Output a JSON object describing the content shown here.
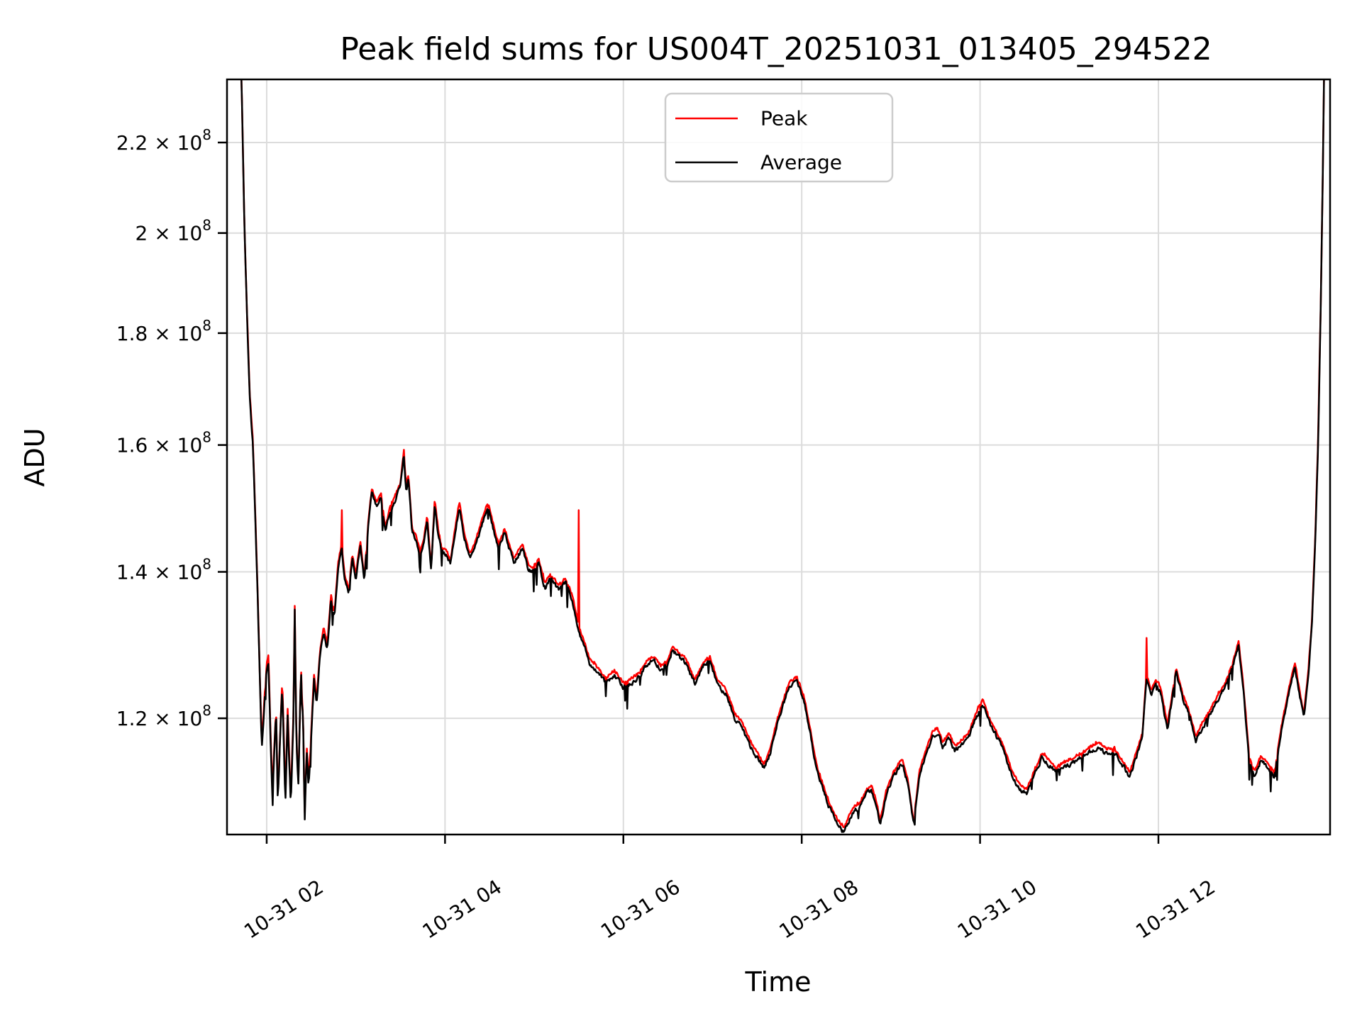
{
  "figure": {
    "title": "Peak field sums for US004T_20251031_013405_294522",
    "xlabel": "Time",
    "ylabel": "ADU",
    "background": "#ffffff"
  },
  "legend": {
    "items": [
      {
        "label": "Peak",
        "color": "#ff0000"
      },
      {
        "label": "Average",
        "color": "#000000"
      }
    ]
  },
  "chart_data": {
    "type": "line",
    "title": "Peak field sums for US004T_20251031_013405_294522",
    "xlabel": "Time",
    "ylabel": "ADU",
    "yscale": "log",
    "grid": true,
    "legend_position": "upper center",
    "x_unit": "hours of day on 2025-10-31",
    "xlim": [
      1.555,
      13.925
    ],
    "value_scale": 100000000.0,
    "ylim_scaled": [
      1.0618,
      2.3511
    ],
    "x_ticks": [
      {
        "t": 2,
        "label": "10-31 02"
      },
      {
        "t": 4,
        "label": "10-31 04"
      },
      {
        "t": 6,
        "label": "10-31 06"
      },
      {
        "t": 8,
        "label": "10-31 08"
      },
      {
        "t": 10,
        "label": "10-31 10"
      },
      {
        "t": 12,
        "label": "10-31 12"
      }
    ],
    "y_ticks": [
      {
        "v": 1.2,
        "mantissa": "1.2",
        "exponent": "8"
      },
      {
        "v": 1.4,
        "mantissa": "1.4",
        "exponent": "8"
      },
      {
        "v": 1.6,
        "mantissa": "1.6",
        "exponent": "8"
      },
      {
        "v": 1.8,
        "mantissa": "1.8",
        "exponent": "8"
      },
      {
        "v": 2.0,
        "mantissa": "2",
        "exponent": "8"
      },
      {
        "v": 2.2,
        "mantissa": "2.2",
        "exponent": "8"
      }
    ],
    "series": [
      {
        "name": "Peak",
        "color": "#ff0000",
        "relation": "slightly above Average; distinct narrow spikes listed below",
        "spikes": [
          [
            2.84,
            1.494
          ],
          [
            3.535,
            1.592
          ],
          [
            5.5,
            1.494
          ],
          [
            11.865,
            1.306
          ]
        ]
      },
      {
        "name": "Average",
        "color": "#000000",
        "anchors": [
          [
            1.555,
            3.6
          ],
          [
            1.62,
            3.0
          ],
          [
            1.68,
            2.55
          ],
          [
            1.718,
            2.35
          ],
          [
            1.75,
            2.02
          ],
          [
            1.78,
            1.83
          ],
          [
            1.81,
            1.68
          ],
          [
            1.845,
            1.6
          ],
          [
            1.875,
            1.47
          ],
          [
            1.9,
            1.36
          ],
          [
            1.925,
            1.24
          ],
          [
            1.945,
            1.166
          ],
          [
            1.97,
            1.21
          ],
          [
            2.0,
            1.265
          ],
          [
            2.02,
            1.278
          ],
          [
            2.045,
            1.17
          ],
          [
            2.065,
            1.105
          ],
          [
            2.085,
            1.16
          ],
          [
            2.105,
            1.205
          ],
          [
            2.125,
            1.098
          ],
          [
            2.15,
            1.17
          ],
          [
            2.175,
            1.245
          ],
          [
            2.21,
            1.1
          ],
          [
            2.235,
            1.205
          ],
          [
            2.27,
            1.096
          ],
          [
            2.3,
            1.2
          ],
          [
            2.315,
            1.346
          ],
          [
            2.335,
            1.16
          ],
          [
            2.355,
            1.12
          ],
          [
            2.385,
            1.26
          ],
          [
            2.41,
            1.185
          ],
          [
            2.425,
            1.078
          ],
          [
            2.45,
            1.16
          ],
          [
            2.47,
            1.115
          ],
          [
            2.5,
            1.18
          ],
          [
            2.53,
            1.25
          ],
          [
            2.56,
            1.22
          ],
          [
            2.6,
            1.285
          ],
          [
            2.64,
            1.315
          ],
          [
            2.68,
            1.29
          ],
          [
            2.72,
            1.36
          ],
          [
            2.76,
            1.335
          ],
          [
            2.8,
            1.405
          ],
          [
            2.84,
            1.435
          ],
          [
            2.875,
            1.39
          ],
          [
            2.92,
            1.368
          ],
          [
            2.96,
            1.42
          ],
          [
            3.0,
            1.39
          ],
          [
            3.05,
            1.44
          ],
          [
            3.095,
            1.385
          ],
          [
            3.14,
            1.47
          ],
          [
            3.18,
            1.52
          ],
          [
            3.23,
            1.5
          ],
          [
            3.28,
            1.515
          ],
          [
            3.33,
            1.46
          ],
          [
            3.38,
            1.49
          ],
          [
            3.44,
            1.51
          ],
          [
            3.5,
            1.53
          ],
          [
            3.535,
            1.58
          ],
          [
            3.565,
            1.525
          ],
          [
            3.59,
            1.545
          ],
          [
            3.63,
            1.458
          ],
          [
            3.67,
            1.45
          ],
          [
            3.72,
            1.425
          ],
          [
            3.76,
            1.44
          ],
          [
            3.8,
            1.478
          ],
          [
            3.845,
            1.4
          ],
          [
            3.885,
            1.505
          ],
          [
            3.92,
            1.46
          ],
          [
            3.96,
            1.43
          ],
          [
            4.02,
            1.425
          ],
          [
            4.06,
            1.41
          ],
          [
            4.11,
            1.455
          ],
          [
            4.16,
            1.5
          ],
          [
            4.22,
            1.448
          ],
          [
            4.28,
            1.42
          ],
          [
            4.33,
            1.435
          ],
          [
            4.41,
            1.47
          ],
          [
            4.48,
            1.5
          ],
          [
            4.55,
            1.46
          ],
          [
            4.6,
            1.435
          ],
          [
            4.67,
            1.458
          ],
          [
            4.77,
            1.413
          ],
          [
            4.87,
            1.435
          ],
          [
            4.93,
            1.405
          ],
          [
            4.98,
            1.4
          ],
          [
            5.05,
            1.413
          ],
          [
            5.12,
            1.377
          ],
          [
            5.18,
            1.39
          ],
          [
            5.27,
            1.374
          ],
          [
            5.35,
            1.384
          ],
          [
            5.43,
            1.358
          ],
          [
            5.5,
            1.315
          ],
          [
            5.56,
            1.295
          ],
          [
            5.62,
            1.272
          ],
          [
            5.7,
            1.262
          ],
          [
            5.8,
            1.245
          ],
          [
            5.9,
            1.256
          ],
          [
            6.0,
            1.24
          ],
          [
            6.08,
            1.245
          ],
          [
            6.17,
            1.252
          ],
          [
            6.27,
            1.27
          ],
          [
            6.35,
            1.275
          ],
          [
            6.42,
            1.262
          ],
          [
            6.5,
            1.27
          ],
          [
            6.55,
            1.289
          ],
          [
            6.62,
            1.28
          ],
          [
            6.7,
            1.272
          ],
          [
            6.8,
            1.244
          ],
          [
            6.9,
            1.268
          ],
          [
            6.97,
            1.275
          ],
          [
            7.05,
            1.245
          ],
          [
            7.15,
            1.231
          ],
          [
            7.25,
            1.2
          ],
          [
            7.33,
            1.19
          ],
          [
            7.42,
            1.166
          ],
          [
            7.5,
            1.152
          ],
          [
            7.58,
            1.138
          ],
          [
            7.65,
            1.158
          ],
          [
            7.72,
            1.19
          ],
          [
            7.8,
            1.22
          ],
          [
            7.87,
            1.243
          ],
          [
            7.95,
            1.245
          ],
          [
            8.03,
            1.22
          ],
          [
            8.1,
            1.178
          ],
          [
            8.17,
            1.135
          ],
          [
            8.22,
            1.12
          ],
          [
            8.3,
            1.095
          ],
          [
            8.38,
            1.078
          ],
          [
            8.47,
            1.064
          ],
          [
            8.52,
            1.075
          ],
          [
            8.58,
            1.088
          ],
          [
            8.67,
            1.095
          ],
          [
            8.72,
            1.107
          ],
          [
            8.78,
            1.113
          ],
          [
            8.83,
            1.098
          ],
          [
            8.88,
            1.072
          ],
          [
            8.95,
            1.108
          ],
          [
            9.02,
            1.126
          ],
          [
            9.08,
            1.138
          ],
          [
            9.13,
            1.144
          ],
          [
            9.19,
            1.12
          ],
          [
            9.255,
            1.072
          ],
          [
            9.32,
            1.13
          ],
          [
            9.4,
            1.158
          ],
          [
            9.47,
            1.178
          ],
          [
            9.52,
            1.182
          ],
          [
            9.58,
            1.165
          ],
          [
            9.65,
            1.175
          ],
          [
            9.72,
            1.16
          ],
          [
            9.8,
            1.168
          ],
          [
            9.88,
            1.178
          ],
          [
            9.95,
            1.2
          ],
          [
            10.03,
            1.219
          ],
          [
            10.1,
            1.195
          ],
          [
            10.18,
            1.178
          ],
          [
            10.27,
            1.158
          ],
          [
            10.35,
            1.132
          ],
          [
            10.43,
            1.116
          ],
          [
            10.52,
            1.108
          ],
          [
            10.6,
            1.128
          ],
          [
            10.7,
            1.152
          ],
          [
            10.78,
            1.142
          ],
          [
            10.85,
            1.134
          ],
          [
            10.93,
            1.14
          ],
          [
            11.0,
            1.143
          ],
          [
            11.08,
            1.148
          ],
          [
            11.17,
            1.153
          ],
          [
            11.25,
            1.16
          ],
          [
            11.33,
            1.165
          ],
          [
            11.42,
            1.156
          ],
          [
            11.5,
            1.158
          ],
          [
            11.58,
            1.145
          ],
          [
            11.68,
            1.129
          ],
          [
            11.75,
            1.152
          ],
          [
            11.82,
            1.175
          ],
          [
            11.865,
            1.25
          ],
          [
            11.92,
            1.23
          ],
          [
            11.97,
            1.245
          ],
          [
            12.03,
            1.232
          ],
          [
            12.1,
            1.185
          ],
          [
            12.16,
            1.23
          ],
          [
            12.2,
            1.26
          ],
          [
            12.27,
            1.225
          ],
          [
            12.34,
            1.205
          ],
          [
            12.42,
            1.172
          ],
          [
            12.5,
            1.19
          ],
          [
            12.58,
            1.205
          ],
          [
            12.67,
            1.225
          ],
          [
            12.75,
            1.24
          ],
          [
            12.82,
            1.262
          ],
          [
            12.9,
            1.295
          ],
          [
            12.95,
            1.24
          ],
          [
            13.02,
            1.146
          ],
          [
            13.08,
            1.13
          ],
          [
            13.15,
            1.148
          ],
          [
            13.22,
            1.14
          ],
          [
            13.3,
            1.128
          ],
          [
            13.38,
            1.185
          ],
          [
            13.45,
            1.225
          ],
          [
            13.53,
            1.267
          ],
          [
            13.58,
            1.232
          ],
          [
            13.63,
            1.2
          ],
          [
            13.68,
            1.255
          ],
          [
            13.72,
            1.32
          ],
          [
            13.76,
            1.45
          ],
          [
            13.79,
            1.6
          ],
          [
            13.82,
            1.85
          ],
          [
            13.845,
            2.15
          ],
          [
            13.87,
            2.6
          ],
          [
            13.925,
            3.6
          ]
        ]
      }
    ],
    "style": {
      "grid_color": "#dcdcdc",
      "spine_color": "#000000",
      "peak_color": "#ff0000",
      "average_color": "#000000",
      "legend_border": "#cccccc"
    }
  }
}
